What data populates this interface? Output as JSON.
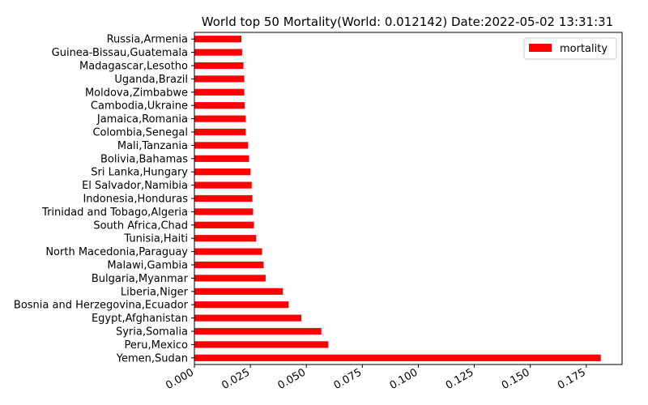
{
  "chart_data": {
    "type": "bar",
    "orientation": "horizontal",
    "title": "World top 50 Mortality(World: 0.012142) Date:2022-05-02 13:31:31",
    "xlabel": "",
    "ylabel": "",
    "xlim": [
      0,
      0.191
    ],
    "x_ticks": [
      "0.000",
      "0.025",
      "0.050",
      "0.075",
      "0.100",
      "0.125",
      "0.150",
      "0.175"
    ],
    "grid": false,
    "legend_position": "top-right",
    "categories": [
      "Yemen,Sudan",
      "Peru,Mexico",
      "Syria,Somalia",
      "Egypt,Afghanistan",
      "Bosnia and Herzegovina,Ecuador",
      "Liberia,Niger",
      "Bulgaria,Myanmar",
      "Malawi,Gambia",
      "North Macedonia,Paraguay",
      "Tunisia,Haiti",
      "South Africa,Chad",
      "Trinidad and Tobago,Algeria",
      "Indonesia,Honduras",
      "El Salvador,Namibia",
      "Sri Lanka,Hungary",
      "Bolivia,Bahamas",
      "Mali,Tanzania",
      "Colombia,Senegal",
      "Jamaica,Romania",
      "Cambodia,Ukraine",
      "Moldova,Zimbabwe",
      "Uganda,Brazil",
      "Madagascar,Lesotho",
      "Guinea-Bissau,Guatemala",
      "Russia,Armenia"
    ],
    "series": [
      {
        "name": "mortality",
        "color": "#ff0000",
        "values": [
          0.1815,
          0.0598,
          0.0567,
          0.0478,
          0.0421,
          0.0395,
          0.0318,
          0.0309,
          0.0302,
          0.0276,
          0.0266,
          0.0262,
          0.0259,
          0.0256,
          0.025,
          0.0244,
          0.024,
          0.0229,
          0.0229,
          0.0225,
          0.0223,
          0.0223,
          0.0219,
          0.0213,
          0.021
        ]
      }
    ]
  }
}
